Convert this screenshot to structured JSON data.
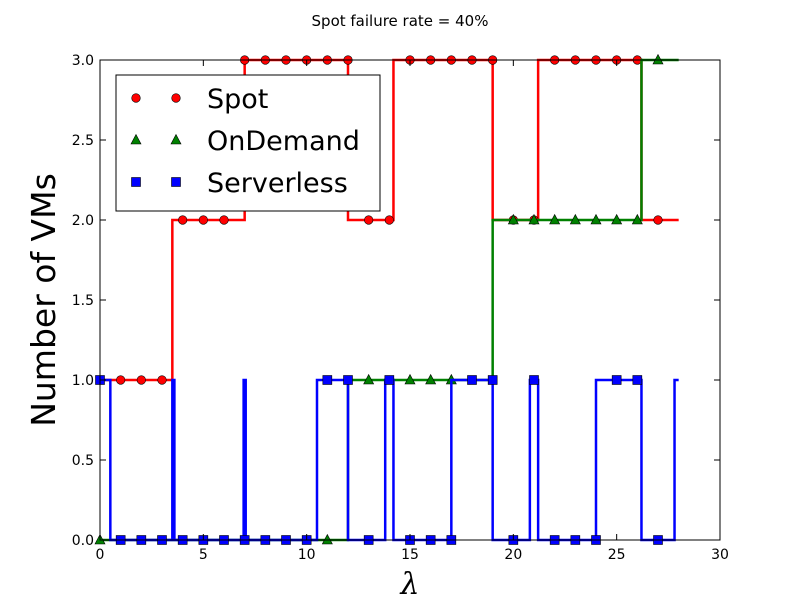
{
  "chart_data": {
    "type": "line",
    "title": "Spot failure rate = 40%",
    "xlabel": "λ",
    "ylabel": "Number of VMs",
    "xlim": [
      0,
      30
    ],
    "ylim": [
      0.0,
      3.0
    ],
    "xticks": [
      0,
      5,
      10,
      15,
      20,
      25,
      30
    ],
    "yticks": [
      0.0,
      0.5,
      1.0,
      1.5,
      2.0,
      2.5,
      3.0
    ],
    "xtick_labels": [
      "0",
      "5",
      "10",
      "15",
      "20",
      "25",
      "30"
    ],
    "ytick_labels": [
      "0.0",
      "0.5",
      "1.0",
      "1.5",
      "2.0",
      "2.5",
      "3.0"
    ],
    "grid": false,
    "legend_position": "top-left",
    "series": [
      {
        "name": "Spot",
        "color": "#ff0000",
        "marker": "circle",
        "step": [
          [
            0,
            1
          ],
          [
            3.5,
            1
          ],
          [
            3.5,
            2
          ],
          [
            7,
            2
          ],
          [
            7,
            3
          ],
          [
            12,
            3
          ],
          [
            12,
            2
          ],
          [
            14.2,
            2
          ],
          [
            14.2,
            3
          ],
          [
            19,
            3
          ],
          [
            19,
            2
          ],
          [
            21.2,
            2
          ],
          [
            21.2,
            3
          ],
          [
            26.2,
            3
          ],
          [
            26.2,
            2
          ],
          [
            28,
            2
          ]
        ],
        "markers_x": [
          1,
          2,
          3,
          4,
          5,
          6,
          7,
          8,
          9,
          10,
          11,
          12,
          13,
          14,
          15,
          16,
          17,
          18,
          19,
          20,
          21,
          22,
          23,
          24,
          25,
          26,
          27
        ],
        "markers_y": [
          1,
          1,
          1,
          2,
          2,
          2,
          3,
          3,
          3,
          3,
          3,
          3,
          2,
          2,
          3,
          3,
          3,
          3,
          3,
          2,
          2,
          3,
          3,
          3,
          3,
          3,
          2
        ]
      },
      {
        "name": "OnDemand",
        "color": "#008000",
        "marker": "triangle",
        "step": [
          [
            0,
            0
          ],
          [
            12,
            0
          ],
          [
            12,
            1
          ],
          [
            19,
            1
          ],
          [
            19,
            2
          ],
          [
            26.2,
            2
          ],
          [
            26.2,
            3
          ],
          [
            28,
            3
          ]
        ],
        "markers_x": [
          0,
          11,
          13,
          15,
          16,
          17,
          20,
          21,
          22,
          23,
          24,
          25,
          26,
          27
        ],
        "markers_y": [
          0,
          0,
          1,
          1,
          1,
          1,
          2,
          2,
          2,
          2,
          2,
          2,
          2,
          3
        ]
      },
      {
        "name": "Serverless",
        "color": "#0000ff",
        "marker": "square",
        "step": [
          [
            0,
            1
          ],
          [
            0.5,
            1
          ],
          [
            0.5,
            0
          ],
          [
            3.5,
            0
          ],
          [
            3.5,
            1
          ],
          [
            3.6,
            1
          ],
          [
            3.6,
            0
          ],
          [
            6.95,
            0
          ],
          [
            6.95,
            1
          ],
          [
            7.05,
            1
          ],
          [
            7.05,
            0
          ],
          [
            10.5,
            0
          ],
          [
            10.5,
            1
          ],
          [
            12,
            1
          ],
          [
            12,
            0
          ],
          [
            13.8,
            0
          ],
          [
            13.8,
            1
          ],
          [
            14.2,
            1
          ],
          [
            14.2,
            0
          ],
          [
            17,
            0
          ],
          [
            17,
            1
          ],
          [
            19,
            1
          ],
          [
            19,
            0
          ],
          [
            20.8,
            0
          ],
          [
            20.8,
            1
          ],
          [
            21.2,
            1
          ],
          [
            21.2,
            0
          ],
          [
            24,
            0
          ],
          [
            24,
            1
          ],
          [
            26.2,
            1
          ],
          [
            26.2,
            0
          ],
          [
            27.8,
            0
          ],
          [
            27.8,
            1
          ],
          [
            28,
            1
          ]
        ],
        "markers_x": [
          0,
          1,
          2,
          3,
          4,
          5,
          6,
          7,
          8,
          9,
          10,
          11,
          12,
          13,
          14,
          15,
          16,
          17,
          18,
          19,
          20,
          21,
          22,
          23,
          24,
          25,
          26,
          27
        ],
        "markers_y": [
          1,
          0,
          0,
          0,
          0,
          0,
          0,
          0,
          0,
          0,
          0,
          1,
          1,
          0,
          1,
          0,
          0,
          0,
          1,
          1,
          0,
          1,
          0,
          0,
          0,
          1,
          1,
          0
        ]
      }
    ]
  }
}
